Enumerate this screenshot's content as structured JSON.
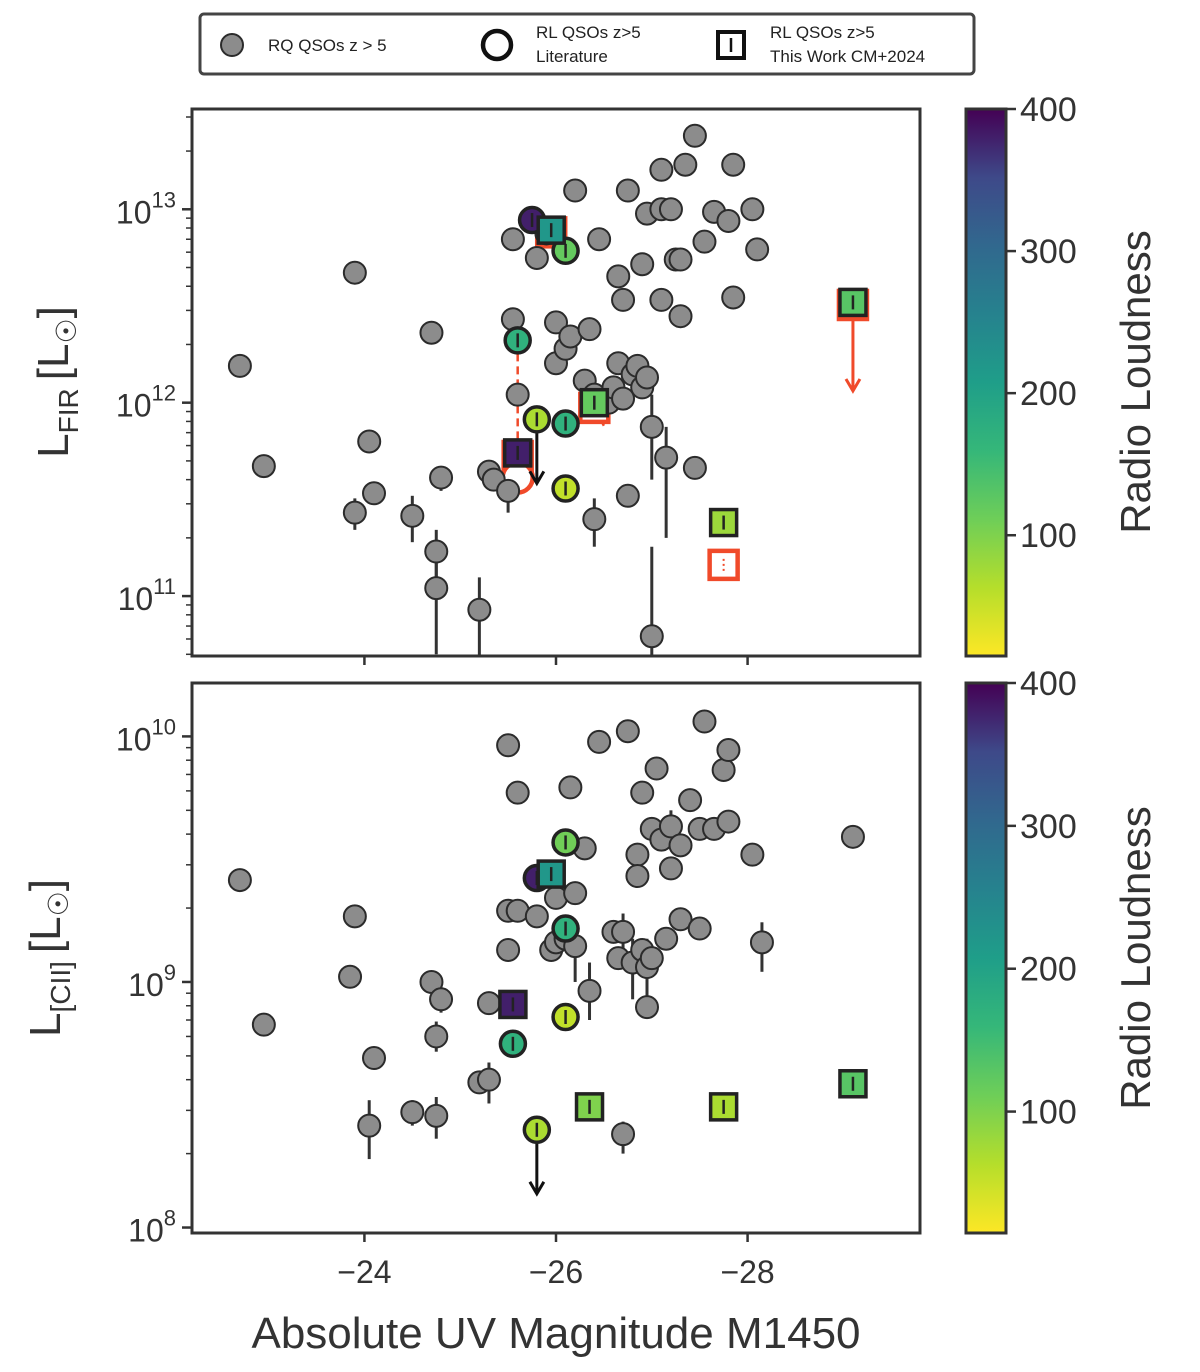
{
  "legend": {
    "rq": "RQ QSOs z > 5",
    "lit_line1": "RL QSOs z>5",
    "lit_line2": "Literature",
    "tw_line1": "RL QSOs z>5",
    "tw_line2": "This Work CM+2024"
  },
  "colorbar": {
    "label": "Radio Loudness",
    "range": [
      15,
      400
    ],
    "ticks": [
      100,
      200,
      300,
      400
    ],
    "tick_labels": [
      "100",
      "200",
      "300",
      "400"
    ]
  },
  "x_axis": {
    "label": "Absolute UV Magnitude M1450",
    "range": [
      -22.2,
      -29.8
    ],
    "ticks": [
      -24,
      -26,
      -28
    ],
    "tick_labels": [
      "−24",
      "−26",
      "−28"
    ]
  },
  "colors": {
    "gray_marker": "#8c8c8c",
    "edge": "#2b2b2b",
    "red_limit": "#f04a2a",
    "frame": "#333333"
  },
  "chart_data": [
    {
      "type": "scatter",
      "panel": "top",
      "ylabel": "L_FIR [L_sun]",
      "ylabel_main": "L",
      "ylabel_sub": "FIR",
      "ylabel_unit": "[L",
      "ylabel_close": "]",
      "yscale": "log",
      "ylim": [
        49000000000.0,
        33000000000000.0
      ],
      "ytick_values": [
        100000000000.0,
        1000000000000.0,
        10000000000000.0
      ],
      "ytick_exponents": [
        "11",
        "12",
        "13"
      ],
      "ytick_base": "10",
      "rq": [
        [
          -22.7,
          1550000000000.0,
          null,
          null
        ],
        [
          -22.95,
          470000000000.0,
          null,
          null
        ],
        [
          -23.9,
          4700000000000.0,
          null,
          null
        ],
        [
          -23.9,
          270000000000.0,
          220000000000.0,
          320000000000.0
        ],
        [
          -24.05,
          630000000000.0,
          null,
          null
        ],
        [
          -24.1,
          340000000000.0,
          null,
          null
        ],
        [
          -24.5,
          260000000000.0,
          190000000000.0,
          330000000000.0
        ],
        [
          -24.7,
          2300000000000.0,
          null,
          null
        ],
        [
          -24.75,
          170000000000.0,
          120000000000.0,
          220000000000.0
        ],
        [
          -24.75,
          110000000000.0,
          50000000000.0,
          160000000000.0
        ],
        [
          -24.8,
          410000000000.0,
          350000000000.0,
          470000000000.0
        ],
        [
          -25.2,
          85000000000.0,
          48000000000.0,
          125000000000.0
        ],
        [
          -25.3,
          440000000000.0,
          null,
          null
        ],
        [
          -25.35,
          400000000000.0,
          null,
          null
        ],
        [
          -25.5,
          350000000000.0,
          270000000000.0,
          420000000000.0
        ],
        [
          -25.55,
          7000000000000.0,
          null,
          null
        ],
        [
          -25.55,
          2700000000000.0,
          null,
          null
        ],
        [
          -25.6,
          1100000000000.0,
          null,
          null
        ],
        [
          -25.8,
          5600000000000.0,
          null,
          null
        ],
        [
          -25.9,
          7500000000000.0,
          null,
          null
        ],
        [
          -26.0,
          2600000000000.0,
          null,
          null
        ],
        [
          -26.0,
          1600000000000.0,
          null,
          null
        ],
        [
          -26.1,
          1900000000000.0,
          null,
          null
        ],
        [
          -26.15,
          2200000000000.0,
          null,
          null
        ],
        [
          -26.2,
          12500000000000.0,
          null,
          null
        ],
        [
          -26.3,
          1300000000000.0,
          null,
          null
        ],
        [
          -26.35,
          2400000000000.0,
          null,
          null
        ],
        [
          -26.4,
          250000000000.0,
          180000000000.0,
          320000000000.0
        ],
        [
          -26.45,
          7000000000000.0,
          null,
          null
        ],
        [
          -26.4,
          1100000000000.0,
          null,
          null
        ],
        [
          -26.55,
          1000000000000.0,
          null,
          null
        ],
        [
          -26.6,
          1200000000000.0,
          null,
          null
        ],
        [
          -26.65,
          4500000000000.0,
          null,
          null
        ],
        [
          -26.65,
          1600000000000.0,
          null,
          null
        ],
        [
          -26.7,
          3400000000000.0,
          null,
          null
        ],
        [
          -26.7,
          1050000000000.0,
          null,
          null
        ],
        [
          -26.75,
          12500000000000.0,
          null,
          null
        ],
        [
          -26.75,
          330000000000.0,
          null,
          null
        ],
        [
          -26.8,
          1400000000000.0,
          null,
          null
        ],
        [
          -26.85,
          1550000000000.0,
          null,
          null
        ],
        [
          -26.9,
          1200000000000.0,
          null,
          null
        ],
        [
          -26.9,
          5200000000000.0,
          null,
          null
        ],
        [
          -26.95,
          1350000000000.0,
          null,
          null
        ],
        [
          -26.95,
          9500000000000.0,
          null,
          null
        ],
        [
          -27.0,
          750000000000.0,
          400000000000.0,
          1100000000000.0
        ],
        [
          -27.0,
          62000000000.0,
          40000000000.0,
          180000000000.0
        ],
        [
          -27.1,
          16000000000000.0,
          null,
          null
        ],
        [
          -27.1,
          3400000000000.0,
          null,
          null
        ],
        [
          -27.1,
          10000000000000.0,
          null,
          null
        ],
        [
          -27.15,
          520000000000.0,
          200000000000.0,
          750000000000.0
        ],
        [
          -27.2,
          10000000000000.0,
          null,
          null
        ],
        [
          -27.25,
          5500000000000.0,
          null,
          null
        ],
        [
          -27.3,
          2800000000000.0,
          null,
          null
        ],
        [
          -27.35,
          17000000000000.0,
          null,
          null
        ],
        [
          -27.45,
          24000000000000.0,
          null,
          null
        ],
        [
          -27.45,
          460000000000.0,
          null,
          null
        ],
        [
          -27.55,
          6800000000000.0,
          null,
          null
        ],
        [
          -27.65,
          9700000000000.0,
          null,
          null
        ],
        [
          -27.8,
          8700000000000.0,
          null,
          null
        ],
        [
          -27.85,
          17000000000000.0,
          null,
          null
        ],
        [
          -27.85,
          3500000000000.0,
          null,
          null
        ],
        [
          -28.05,
          10000000000000.0,
          null,
          null
        ],
        [
          -28.1,
          6200000000000.0,
          null,
          null
        ],
        [
          -27.3,
          5500000000000.0,
          null,
          null
        ]
      ],
      "lit": [
        [
          -25.75,
          8800000000000.0,
          380,
          "none"
        ],
        [
          -26.1,
          6100000000000.0,
          120,
          "none"
        ],
        [
          -25.6,
          2100000000000.0,
          170,
          "none"
        ],
        [
          -25.8,
          820000000000.0,
          70,
          "down"
        ],
        [
          -26.1,
          780000000000.0,
          170,
          "none"
        ],
        [
          -26.1,
          360000000000.0,
          55,
          "none"
        ]
      ],
      "tw": [
        [
          -25.95,
          7800000000000.0,
          220,
          "none"
        ],
        [
          -25.6,
          550000000000.0,
          380,
          "none"
        ],
        [
          -26.4,
          1000000000000.0,
          120,
          "none"
        ],
        [
          -27.75,
          240000000000.0,
          80,
          "none"
        ],
        [
          -29.1,
          3300000000000.0,
          130,
          "none"
        ]
      ],
      "red_limits": [
        {
          "type": "square",
          "x": -25.95,
          "y": 7600000000000.0,
          "arrow_to": null
        },
        {
          "type": "square",
          "x": -25.6,
          "y": 530000000000.0,
          "arrow_to": null
        },
        {
          "type": "square",
          "x": -26.4,
          "y": 940000000000.0,
          "arrow_to": null
        },
        {
          "type": "square",
          "x": -27.75,
          "y": 145000000000.0,
          "arrow_to": null
        },
        {
          "type": "square",
          "x": -29.1,
          "y": 3200000000000.0,
          "arrow_to": 1150000000000.0
        },
        {
          "type": "circle",
          "x": -25.6,
          "y": 410000000000.0,
          "arrow_to": null
        }
      ],
      "red_connectors": [
        [
          -25.6,
          2100000000000.0,
          -25.6,
          460000000000.0
        ],
        [
          -26.4,
          940000000000.0,
          -26.5,
          760000000000.0
        ]
      ]
    },
    {
      "type": "scatter",
      "panel": "bottom",
      "ylabel": "L_[CII] [L_sun]",
      "ylabel_main": "L",
      "ylabel_sub": "[CII]",
      "ylabel_unit": "[L",
      "ylabel_close": "]",
      "yscale": "log",
      "ylim": [
        95000000.0,
        16500000000.0
      ],
      "ytick_values": [
        100000000.0,
        1000000000.0,
        10000000000.0
      ],
      "ytick_exponents": [
        "8",
        "9",
        "10"
      ],
      "ytick_base": "10",
      "rq": [
        [
          -22.7,
          2600000000.0,
          null,
          null
        ],
        [
          -22.95,
          670000000.0,
          null,
          null
        ],
        [
          -23.9,
          1850000000.0,
          null,
          null
        ],
        [
          -23.85,
          1050000000.0,
          null,
          null
        ],
        [
          -24.05,
          260000000.0,
          190000000.0,
          330000000.0
        ],
        [
          -24.1,
          490000000.0,
          null,
          null
        ],
        [
          -24.5,
          295000000.0,
          260000000.0,
          330000000.0
        ],
        [
          -24.7,
          1000000000.0,
          null,
          null
        ],
        [
          -24.75,
          285000000.0,
          230000000.0,
          340000000.0
        ],
        [
          -24.75,
          600000000.0,
          520000000.0,
          690000000.0
        ],
        [
          -24.8,
          850000000.0,
          750000000.0,
          960000000.0
        ],
        [
          -25.2,
          390000000.0,
          null,
          null
        ],
        [
          -25.3,
          400000000.0,
          320000000.0,
          470000000.0
        ],
        [
          -25.3,
          820000000.0,
          null,
          null
        ],
        [
          -25.5,
          9200000000.0,
          null,
          null
        ],
        [
          -25.5,
          1950000000.0,
          null,
          null
        ],
        [
          -25.5,
          1350000000.0,
          null,
          null
        ],
        [
          -25.6,
          5900000000.0,
          null,
          null
        ],
        [
          -25.6,
          1950000000.0,
          null,
          null
        ],
        [
          -25.8,
          1850000000.0,
          null,
          null
        ],
        [
          -25.95,
          1350000000.0,
          null,
          null
        ],
        [
          -26.0,
          2200000000.0,
          null,
          null
        ],
        [
          -26.0,
          1450000000.0,
          null,
          null
        ],
        [
          -26.1,
          1500000000.0,
          null,
          null
        ],
        [
          -26.15,
          6200000000.0,
          null,
          null
        ],
        [
          -26.2,
          1400000000.0,
          1000000000.0,
          1700000000.0
        ],
        [
          -26.2,
          2300000000.0,
          null,
          null
        ],
        [
          -26.3,
          3500000000.0,
          null,
          null
        ],
        [
          -26.35,
          920000000.0,
          700000000.0,
          1200000000.0
        ],
        [
          -26.45,
          9500000000.0,
          null,
          null
        ],
        [
          -26.6,
          1600000000.0,
          null,
          null
        ],
        [
          -26.65,
          1250000000.0,
          null,
          null
        ],
        [
          -26.7,
          1600000000.0,
          1300000000.0,
          1900000000.0
        ],
        [
          -26.7,
          240000000.0,
          200000000.0,
          270000000.0
        ],
        [
          -26.75,
          10500000000.0,
          null,
          null
        ],
        [
          -26.8,
          1200000000.0,
          850000000.0,
          1500000000.0
        ],
        [
          -26.85,
          3300000000.0,
          null,
          null
        ],
        [
          -26.85,
          2700000000.0,
          null,
          null
        ],
        [
          -26.9,
          5900000000.0,
          null,
          null
        ],
        [
          -26.9,
          1350000000.0,
          null,
          null
        ],
        [
          -26.95,
          1150000000.0,
          800000000.0,
          1500000000.0
        ],
        [
          -26.95,
          790000000.0,
          null,
          null
        ],
        [
          -27.0,
          1250000000.0,
          null,
          null
        ],
        [
          -27.0,
          4200000000.0,
          null,
          null
        ],
        [
          -27.05,
          7400000000.0,
          null,
          null
        ],
        [
          -27.1,
          3800000000.0,
          null,
          null
        ],
        [
          -27.15,
          1500000000.0,
          null,
          null
        ],
        [
          -27.2,
          4300000000.0,
          3600000000.0,
          5000000000.0
        ],
        [
          -27.2,
          2900000000.0,
          null,
          null
        ],
        [
          -27.3,
          1800000000.0,
          null,
          null
        ],
        [
          -27.3,
          3600000000.0,
          null,
          null
        ],
        [
          -27.4,
          5500000000.0,
          null,
          null
        ],
        [
          -27.5,
          4200000000.0,
          null,
          null
        ],
        [
          -27.55,
          11500000000.0,
          null,
          null
        ],
        [
          -27.5,
          1650000000.0,
          null,
          null
        ],
        [
          -27.65,
          4200000000.0,
          null,
          null
        ],
        [
          -27.75,
          7300000000.0,
          null,
          null
        ],
        [
          -27.8,
          8800000000.0,
          null,
          null
        ],
        [
          -27.8,
          4500000000.0,
          null,
          null
        ],
        [
          -28.05,
          3300000000.0,
          null,
          null
        ],
        [
          -28.15,
          1450000000.0,
          1100000000.0,
          1750000000.0
        ],
        [
          -29.1,
          3900000000.0,
          null,
          null
        ]
      ],
      "lit": [
        [
          -25.8,
          2650000000.0,
          380,
          "none"
        ],
        [
          -26.1,
          3700000000.0,
          110,
          "none"
        ],
        [
          -26.1,
          1650000000.0,
          170,
          "none"
        ],
        [
          -25.55,
          560000000.0,
          170,
          "none"
        ],
        [
          -26.1,
          720000000.0,
          55,
          "none"
        ],
        [
          -25.8,
          250000000.0,
          70,
          "down"
        ]
      ],
      "tw": [
        [
          -25.95,
          2750000000.0,
          220,
          "none"
        ],
        [
          -25.55,
          810000000.0,
          380,
          "none"
        ],
        [
          -26.35,
          310000000.0,
          100,
          "none"
        ],
        [
          -27.75,
          310000000.0,
          70,
          "none"
        ],
        [
          -29.1,
          385000000.0,
          130,
          "none"
        ]
      ],
      "red_limits": [],
      "red_connectors": []
    }
  ]
}
